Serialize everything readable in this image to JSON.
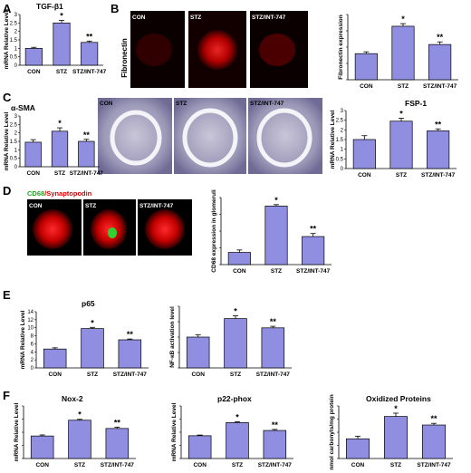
{
  "panels": {
    "a": "A",
    "b": "B",
    "c": "C",
    "d": "D",
    "e": "E",
    "f": "F"
  },
  "micrographs": {
    "fibronectin": {
      "row_label": "Fibronectin",
      "labels": [
        "CON",
        "STZ",
        "STZ/INT-747"
      ]
    },
    "sma_histology": {
      "labels": [
        "CON",
        "STZ",
        "STZ/INT-747"
      ]
    },
    "cd68": {
      "title_green": "CD68",
      "title_red": "/Synaptopodin",
      "labels": [
        "CON",
        "STZ",
        "STZ/INT-747"
      ]
    }
  },
  "chart_data": [
    {
      "id": "A",
      "type": "bar",
      "title": "TGF-β1",
      "ylabel": "mRNA Relative Level",
      "xlabel": "",
      "categories": [
        "CON",
        "STZ",
        "STZ/INT-747"
      ],
      "values": [
        1.0,
        2.5,
        1.35
      ],
      "errors": [
        0.06,
        0.15,
        0.08
      ],
      "significance": [
        "",
        "*",
        "**"
      ],
      "ylim": [
        0,
        3
      ],
      "ticks": [
        "0",
        "0.5",
        "1",
        "1.5",
        "2",
        "2.5",
        "3"
      ]
    },
    {
      "id": "B",
      "type": "bar",
      "title": "",
      "ylabel": "Fibronectin expression",
      "xlabel": "",
      "categories": [
        "CON",
        "STZ",
        "STZ/INT-747"
      ],
      "values": [
        1.0,
        2.05,
        1.35
      ],
      "errors": [
        0.07,
        0.1,
        0.1
      ],
      "significance": [
        "",
        "*",
        "**"
      ],
      "ylim": [
        0,
        2.5
      ],
      "ticks": []
    },
    {
      "id": "C1",
      "type": "bar",
      "title": "α-SMA",
      "ylabel": "mRNA Relative Level",
      "xlabel": "",
      "categories": [
        "CON",
        "STZ",
        "STZ/INT-747"
      ],
      "values": [
        1.45,
        2.1,
        1.5
      ],
      "errors": [
        0.15,
        0.2,
        0.12
      ],
      "significance": [
        "",
        "*",
        "**"
      ],
      "ylim": [
        0,
        3
      ],
      "ticks": [
        "0",
        "0.5",
        "1",
        "1.5",
        "2",
        "2.5",
        "3"
      ]
    },
    {
      "id": "C2",
      "type": "bar",
      "title": "FSP-1",
      "ylabel": "mRNA Relative Level",
      "xlabel": "",
      "categories": [
        "CON",
        "STZ",
        "STZ/INT-747"
      ],
      "values": [
        1.5,
        2.45,
        1.95
      ],
      "errors": [
        0.2,
        0.15,
        0.1
      ],
      "significance": [
        "",
        "*",
        "**"
      ],
      "ylim": [
        0,
        3
      ],
      "ticks": [
        "0",
        "0.5",
        "1",
        "1.5",
        "2",
        "2.5",
        "3"
      ]
    },
    {
      "id": "D",
      "type": "bar",
      "title": "",
      "ylabel": "CD68 expression in glomeruli",
      "xlabel": "",
      "categories": [
        "CON",
        "STZ",
        "STZ/INT-747"
      ],
      "values": [
        1.0,
        4.8,
        2.3
      ],
      "errors": [
        0.2,
        0.12,
        0.25
      ],
      "significance": [
        "",
        "*",
        "**"
      ],
      "ylim": [
        0,
        5.5
      ],
      "ticks": []
    },
    {
      "id": "E1",
      "type": "bar",
      "title": "p65",
      "ylabel": "mRNA Relative Level",
      "xlabel": "",
      "categories": [
        "CON",
        "STZ",
        "STZ/INT-747"
      ],
      "values": [
        4.7,
        9.8,
        7.0
      ],
      "errors": [
        0.3,
        0.3,
        0.2
      ],
      "significance": [
        "",
        "*",
        "**"
      ],
      "ylim": [
        0,
        14
      ],
      "ticks": [
        "0",
        "2",
        "4",
        "6",
        "8",
        "10",
        "12",
        "14"
      ]
    },
    {
      "id": "E2",
      "type": "bar",
      "title": "",
      "ylabel": "NF-κB activation level",
      "xlabel": "",
      "categories": [
        "CON",
        "STZ",
        "STZ/INT-747"
      ],
      "values": [
        1.0,
        1.6,
        1.3
      ],
      "errors": [
        0.07,
        0.09,
        0.05
      ],
      "significance": [
        "",
        "*",
        "**"
      ],
      "ylim": [
        0,
        2
      ],
      "ticks": []
    },
    {
      "id": "F1",
      "type": "bar",
      "title": "Nox-2",
      "ylabel": "mRNA Relative Level",
      "xlabel": "",
      "categories": [
        "CON",
        "STZ",
        "STZ/INT-747"
      ],
      "values": [
        1.5,
        2.55,
        2.0
      ],
      "errors": [
        0.07,
        0.06,
        0.09
      ],
      "significance": [
        "",
        "*",
        "**"
      ],
      "ylim": [
        0,
        3.5
      ],
      "ticks": []
    },
    {
      "id": "F2",
      "type": "bar",
      "title": "p22-phox",
      "ylabel": "mRNA Relative Level",
      "xlabel": "",
      "categories": [
        "CON",
        "STZ",
        "STZ/INT-747"
      ],
      "values": [
        1.3,
        2.05,
        1.6
      ],
      "errors": [
        0.04,
        0.05,
        0.06
      ],
      "significance": [
        "",
        "*",
        "**"
      ],
      "ylim": [
        0,
        3
      ],
      "ticks": []
    },
    {
      "id": "F3",
      "type": "bar",
      "title": "Oxidized Proteins",
      "ylabel": "nmol carbonyls/mg protein",
      "xlabel": "",
      "categories": [
        "CON",
        "STZ",
        "STZ/INT-747"
      ],
      "values": [
        0.6,
        1.28,
        1.02
      ],
      "errors": [
        0.08,
        0.1,
        0.05
      ],
      "significance": [
        "",
        "*",
        "**"
      ],
      "ylim": [
        0,
        1.6
      ],
      "ticks": []
    }
  ]
}
